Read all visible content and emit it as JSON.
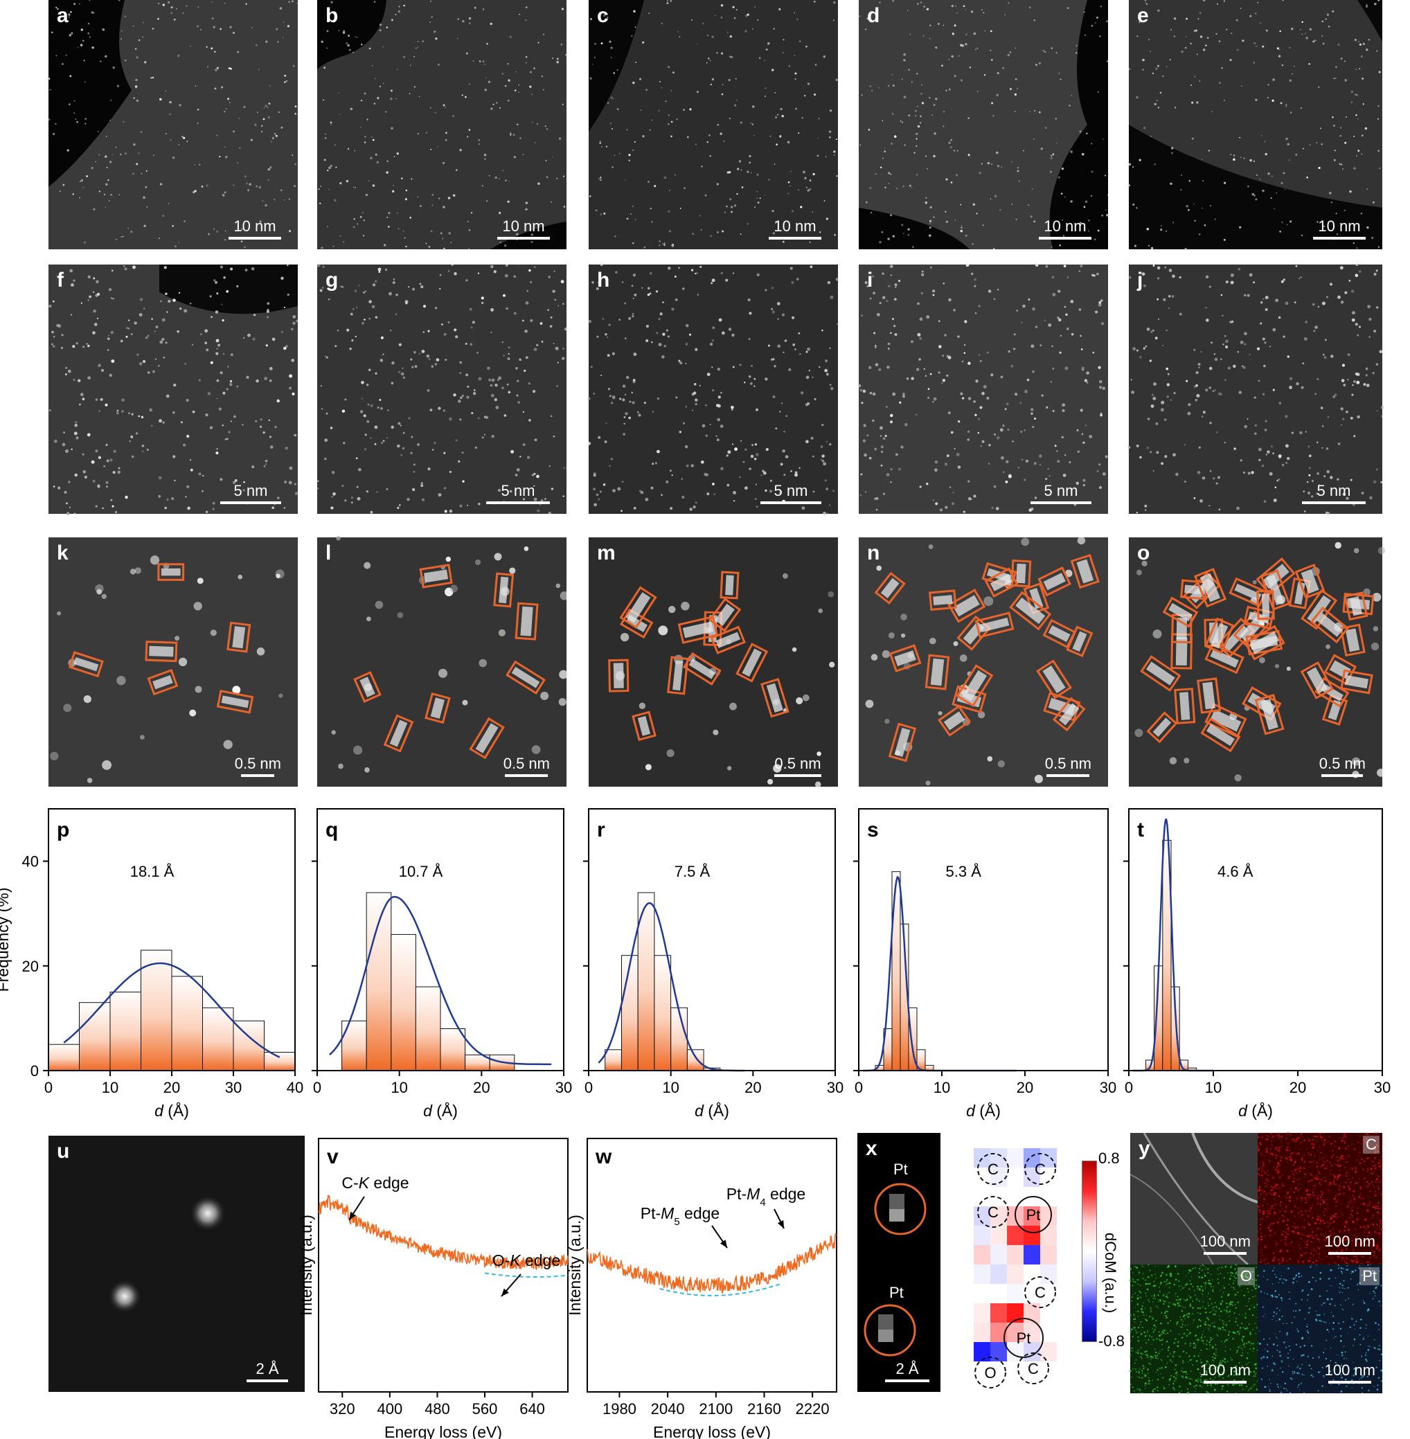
{
  "figure": {
    "row1": [
      {
        "letter": "a",
        "scale": "10 nm"
      },
      {
        "letter": "b",
        "scale": "10 nm"
      },
      {
        "letter": "c",
        "scale": "10 nm"
      },
      {
        "letter": "d",
        "scale": "10 nm"
      },
      {
        "letter": "e",
        "scale": "10 nm"
      }
    ],
    "row2": [
      {
        "letter": "f",
        "scale": "5 nm"
      },
      {
        "letter": "g",
        "scale": "5 nm"
      },
      {
        "letter": "h",
        "scale": "5 nm"
      },
      {
        "letter": "i",
        "scale": "5 nm"
      },
      {
        "letter": "j",
        "scale": "5 nm"
      }
    ],
    "row3": [
      {
        "letter": "k",
        "scale": "0.5 nm"
      },
      {
        "letter": "l",
        "scale": "0.5 nm"
      },
      {
        "letter": "m",
        "scale": "0.5 nm"
      },
      {
        "letter": "n",
        "scale": "0.5 nm"
      },
      {
        "letter": "o",
        "scale": "0.5 nm"
      }
    ],
    "box_color": "#e8642a",
    "fit_color": "#1f3a93",
    "u": {
      "letter": "u",
      "scale": "2 Å"
    },
    "x": {
      "letter": "x",
      "scale": "2 Å",
      "pt_label_1": "Pt",
      "pt_label_2": "Pt",
      "colorbar_label": "dCoM (a.u.)",
      "cbar_max": "0.8",
      "cbar_min": "-0.8",
      "atom_labels": [
        "C",
        "C",
        "C",
        "Pt",
        "C",
        "Pt",
        "O",
        "C"
      ]
    },
    "y": {
      "letter": "y",
      "scale": "100 nm",
      "maps": [
        "C",
        "O",
        "Pt"
      ]
    }
  },
  "chart_data": [
    {
      "panel": "p",
      "type": "bar",
      "mean_label": "18.1 Å",
      "xlabel": "d (Å)",
      "ylabel": "Frequency (%)",
      "xlim": [
        0,
        40
      ],
      "ylim": [
        0,
        50
      ],
      "xticks": [
        0,
        10,
        20,
        30,
        40
      ],
      "yticks": [
        0,
        20,
        40
      ],
      "bins": [
        [
          0,
          5,
          5
        ],
        [
          5,
          10,
          13
        ],
        [
          10,
          15,
          15
        ],
        [
          15,
          20,
          23
        ],
        [
          20,
          25,
          18
        ],
        [
          25,
          30,
          12
        ],
        [
          30,
          35,
          9.5
        ],
        [
          35,
          40,
          3.5
        ]
      ],
      "fit": {
        "mu": 18.1,
        "sigma": 9.5,
        "amp": 20.5,
        "x0": 2.5,
        "x1": 37.5
      }
    },
    {
      "panel": "q",
      "type": "bar",
      "mean_label": "10.7 Å",
      "xlabel": "d (Å)",
      "xlim": [
        0,
        30
      ],
      "ylim": [
        0,
        50
      ],
      "xticks": [
        0,
        10,
        20,
        30
      ],
      "yticks": [
        0,
        20,
        40
      ],
      "bins": [
        [
          3,
          6,
          9.5
        ],
        [
          6,
          9,
          34
        ],
        [
          9,
          12,
          26
        ],
        [
          12,
          15,
          16
        ],
        [
          15,
          18,
          8
        ],
        [
          18,
          21,
          3
        ],
        [
          21,
          24,
          3
        ]
      ],
      "fit": {
        "mu": 9.4,
        "sigma": 3.3,
        "amp": 32,
        "x0": 1.5,
        "x1": 28.5,
        "skew": true
      }
    },
    {
      "panel": "r",
      "type": "bar",
      "mean_label": "7.5 Å",
      "xlabel": "d (Å)",
      "xlim": [
        0,
        30
      ],
      "ylim": [
        0,
        50
      ],
      "xticks": [
        0,
        10,
        20,
        30
      ],
      "yticks": [
        0,
        20,
        40
      ],
      "bins": [
        [
          2,
          4,
          4
        ],
        [
          4,
          6,
          22
        ],
        [
          6,
          8,
          34
        ],
        [
          8,
          10,
          22
        ],
        [
          10,
          12,
          12
        ],
        [
          12,
          14,
          4
        ],
        [
          14,
          16,
          0.5
        ]
      ],
      "fit": {
        "mu": 7.4,
        "sigma": 2.5,
        "amp": 32,
        "x0": 1.2,
        "x1": 19
      }
    },
    {
      "panel": "s",
      "type": "bar",
      "mean_label": "5.3 Å",
      "xlabel": "d (Å)",
      "xlim": [
        0,
        30
      ],
      "ylim": [
        0,
        50
      ],
      "xticks": [
        0,
        10,
        20,
        30
      ],
      "yticks": [
        0,
        20,
        40
      ],
      "bins": [
        [
          2,
          3,
          1
        ],
        [
          3,
          4,
          8
        ],
        [
          4,
          5,
          38
        ],
        [
          5,
          6,
          28
        ],
        [
          6,
          7,
          12
        ],
        [
          7,
          8,
          4
        ],
        [
          8,
          9,
          1
        ]
      ],
      "fit": {
        "mu": 4.7,
        "sigma": 0.85,
        "amp": 37,
        "x0": 0.5,
        "x1": 19
      }
    },
    {
      "panel": "t",
      "type": "bar",
      "mean_label": "4.6 Å",
      "xlabel": "d (Å)",
      "xlim": [
        0,
        30
      ],
      "ylim": [
        0,
        50
      ],
      "xticks": [
        0,
        10,
        20,
        30
      ],
      "yticks": [
        0,
        20,
        40
      ],
      "bins": [
        [
          2,
          3,
          2
        ],
        [
          3,
          4,
          20
        ],
        [
          4,
          5,
          44
        ],
        [
          5,
          6,
          16
        ],
        [
          6,
          7,
          2
        ],
        [
          7,
          8,
          0.5
        ]
      ],
      "fit": {
        "mu": 4.4,
        "sigma": 0.65,
        "amp": 48,
        "x0": 0.5,
        "x1": 10
      }
    },
    {
      "panel": "v",
      "type": "line",
      "xlabel": "Energy loss (eV)",
      "ylabel": "Intensity (a.u.)",
      "xlim": [
        280,
        700
      ],
      "xticks": [
        320,
        400,
        480,
        560,
        640
      ],
      "annotations": [
        {
          "text": "C-",
          "italic": "K",
          "rest": " edge"
        },
        {
          "text": "O-",
          "italic": "K",
          "rest": " edge"
        }
      ]
    },
    {
      "panel": "w",
      "type": "line",
      "xlabel": "Energy loss (eV)",
      "xlim": [
        1940,
        2250
      ],
      "xticks": [
        1980,
        2040,
        2100,
        2160,
        2220
      ],
      "annotations": [
        {
          "text": "Pt-",
          "italic": "M",
          "sub": "5",
          "rest": " edge"
        },
        {
          "text": "Pt-",
          "italic": "M",
          "sub": "4",
          "rest": " edge"
        }
      ]
    }
  ]
}
